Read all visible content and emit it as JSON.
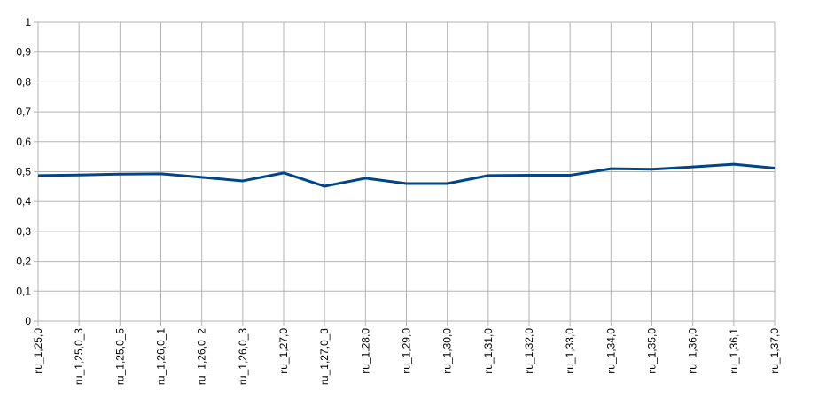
{
  "chart_data": {
    "type": "line",
    "categories": [
      "ru_1,25,0",
      "ru_1,25,0_3",
      "ru_1,25,0_5",
      "ru_1,26,0_1",
      "ru_1,26,0_2",
      "ru_1,26,0_3",
      "ru_1,27,0",
      "ru_1,27,0_3",
      "ru_1,28,0",
      "ru_1,29,0",
      "ru_1,30,0",
      "ru_1,31,0",
      "ru_1,32,0",
      "ru_1,33,0",
      "ru_1,34,0",
      "ru_1,35,0",
      "ru_1,36,0",
      "ru_1,36,1",
      "ru_1,37,0"
    ],
    "series": [
      {
        "color": "#004586",
        "values": [
          0.487,
          0.489,
          0.492,
          0.493,
          0.481,
          0.469,
          0.496,
          0.451,
          0.478,
          0.46,
          0.46,
          0.487,
          0.488,
          0.488,
          0.51,
          0.508,
          0.516,
          0.525,
          0.512
        ]
      }
    ],
    "ylim": [
      0,
      1
    ],
    "yticks": [
      0,
      {
        "value": 0.1,
        "label": "0,1"
      },
      {
        "value": 0.2,
        "label": "0,2"
      },
      {
        "value": 0.3,
        "label": "0,3"
      },
      {
        "value": 0.4,
        "label": "0,4"
      },
      {
        "value": 0.5,
        "label": "0,5"
      },
      {
        "value": 0.6,
        "label": "0,6"
      },
      {
        "value": 0.7,
        "label": "0,7"
      },
      {
        "value": 0.8,
        "label": "0,8"
      },
      {
        "value": 0.9,
        "label": "0,9"
      },
      1
    ],
    "grid": true
  }
}
